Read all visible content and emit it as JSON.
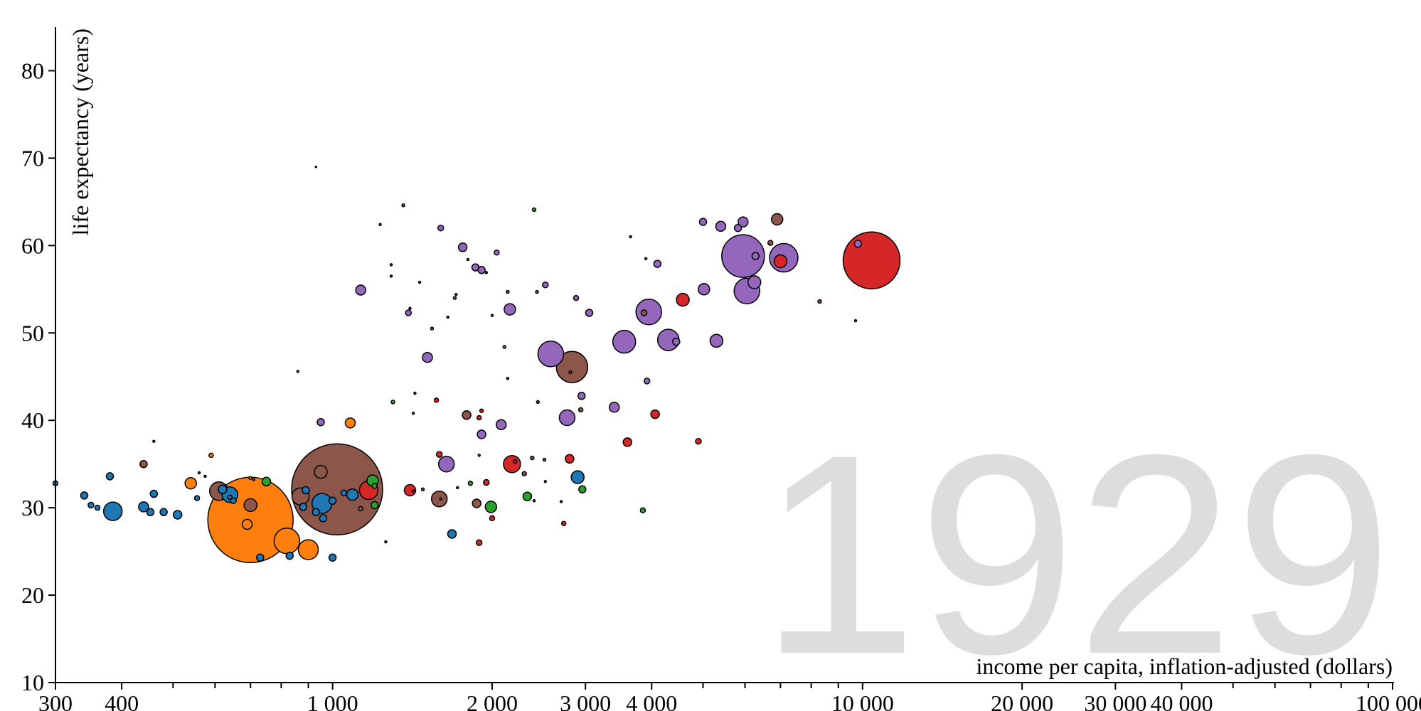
{
  "chart_data": {
    "type": "scatter",
    "year": "1929",
    "xlabel": "income per capita, inflation-adjusted (dollars)",
    "ylabel": "life expectancy (years)",
    "x_scale": "log",
    "xlim": [
      300,
      100000
    ],
    "ylim": [
      10,
      85
    ],
    "x_ticks": [
      300,
      400,
      1000,
      2000,
      3000,
      4000,
      10000,
      20000,
      30000,
      40000,
      100000
    ],
    "x_tick_labels": [
      "300",
      "400",
      "1 000",
      "2 000",
      "3 000",
      "4 000",
      "10 000",
      "20 000",
      "30 000",
      "40 000",
      "100 000"
    ],
    "x_minor_ticks": [
      500,
      600,
      700,
      800,
      900,
      5000,
      6000,
      7000,
      8000,
      9000,
      50000,
      60000,
      70000,
      80000,
      90000
    ],
    "y_ticks": [
      10,
      20,
      30,
      40,
      50,
      60,
      70,
      80
    ],
    "y_tick_labels": [
      "10",
      "20",
      "30",
      "40",
      "50",
      "60",
      "70",
      "80"
    ],
    "colors": {
      "blue": "#1f77b4",
      "orange": "#ff7f0e",
      "green": "#2ca02c",
      "red": "#d62728",
      "purple": "#9467bd",
      "brown": "#8c564b"
    },
    "points": [
      {
        "x": 1020,
        "y": 32.1,
        "r": 64,
        "c": "brown"
      },
      {
        "x": 700,
        "y": 28.6,
        "r": 60,
        "c": "orange"
      },
      {
        "x": 10400,
        "y": 58.3,
        "r": 40,
        "c": "red"
      },
      {
        "x": 5950,
        "y": 58.8,
        "r": 30,
        "c": "purple"
      },
      {
        "x": 2830,
        "y": 46.1,
        "r": 22,
        "c": "brown"
      },
      {
        "x": 2580,
        "y": 47.6,
        "r": 18,
        "c": "purple"
      },
      {
        "x": 7100,
        "y": 58.6,
        "r": 20,
        "c": "purple"
      },
      {
        "x": 6050,
        "y": 54.8,
        "r": 18,
        "c": "purple"
      },
      {
        "x": 3950,
        "y": 52.4,
        "r": 18,
        "c": "purple"
      },
      {
        "x": 3550,
        "y": 49.0,
        "r": 16,
        "c": "purple"
      },
      {
        "x": 4300,
        "y": 49.2,
        "r": 15,
        "c": "purple"
      },
      {
        "x": 820,
        "y": 26.2,
        "r": 18,
        "c": "orange"
      },
      {
        "x": 900,
        "y": 25.2,
        "r": 14,
        "c": "orange"
      },
      {
        "x": 955,
        "y": 30.5,
        "r": 14,
        "c": "blue"
      },
      {
        "x": 385,
        "y": 29.6,
        "r": 13,
        "c": "blue"
      },
      {
        "x": 1170,
        "y": 32.0,
        "r": 13,
        "c": "red"
      },
      {
        "x": 2180,
        "y": 35.0,
        "r": 12,
        "c": "red"
      },
      {
        "x": 610,
        "y": 31.9,
        "r": 13,
        "c": "brown"
      },
      {
        "x": 640,
        "y": 31.5,
        "r": 11,
        "c": "blue"
      },
      {
        "x": 870,
        "y": 31.3,
        "r": 12,
        "c": "brown"
      },
      {
        "x": 1640,
        "y": 35.0,
        "r": 11,
        "c": "purple"
      },
      {
        "x": 1590,
        "y": 31.0,
        "r": 11,
        "c": "brown"
      },
      {
        "x": 2770,
        "y": 40.3,
        "r": 11,
        "c": "purple"
      },
      {
        "x": 5300,
        "y": 49.1,
        "r": 9,
        "c": "purple"
      },
      {
        "x": 6250,
        "y": 55.8,
        "r": 9,
        "c": "purple"
      },
      {
        "x": 5020,
        "y": 55.0,
        "r": 8,
        "c": "purple"
      },
      {
        "x": 4580,
        "y": 53.8,
        "r": 9,
        "c": "red"
      },
      {
        "x": 7000,
        "y": 58.2,
        "r": 9,
        "c": "red"
      },
      {
        "x": 6900,
        "y": 63.0,
        "r": 8,
        "c": "brown"
      },
      {
        "x": 2900,
        "y": 33.5,
        "r": 9,
        "c": "blue"
      },
      {
        "x": 700,
        "y": 30.3,
        "r": 9,
        "c": "brown"
      },
      {
        "x": 950,
        "y": 34.1,
        "r": 9,
        "c": "brown"
      },
      {
        "x": 1190,
        "y": 33.1,
        "r": 8,
        "c": "green"
      },
      {
        "x": 1090,
        "y": 31.5,
        "r": 8,
        "c": "blue"
      },
      {
        "x": 1990,
        "y": 30.1,
        "r": 8,
        "c": "green"
      },
      {
        "x": 1400,
        "y": 32.0,
        "r": 8,
        "c": "red"
      },
      {
        "x": 2160,
        "y": 52.7,
        "r": 8,
        "c": "purple"
      },
      {
        "x": 1130,
        "y": 54.9,
        "r": 7,
        "c": "purple"
      },
      {
        "x": 3400,
        "y": 41.5,
        "r": 7,
        "c": "purple"
      },
      {
        "x": 2080,
        "y": 39.5,
        "r": 7,
        "c": "purple"
      },
      {
        "x": 1510,
        "y": 47.2,
        "r": 7,
        "c": "purple"
      },
      {
        "x": 2800,
        "y": 35.6,
        "r": 6,
        "c": "red"
      },
      {
        "x": 3600,
        "y": 37.5,
        "r": 6,
        "c": "red"
      },
      {
        "x": 4060,
        "y": 40.7,
        "r": 6,
        "c": "red"
      },
      {
        "x": 1080,
        "y": 39.7,
        "r": 7,
        "c": "orange"
      },
      {
        "x": 540,
        "y": 32.8,
        "r": 8,
        "c": "orange"
      },
      {
        "x": 690,
        "y": 28.1,
        "r": 7,
        "c": "orange"
      },
      {
        "x": 5950,
        "y": 62.7,
        "r": 7,
        "c": "purple"
      },
      {
        "x": 5400,
        "y": 62.2,
        "r": 7,
        "c": "purple"
      },
      {
        "x": 5000,
        "y": 62.7,
        "r": 5,
        "c": "purple"
      },
      {
        "x": 9800,
        "y": 60.2,
        "r": 5,
        "c": "purple"
      },
      {
        "x": 3920,
        "y": 44.5,
        "r": 4,
        "c": "purple"
      },
      {
        "x": 4100,
        "y": 57.9,
        "r": 5,
        "c": "purple"
      },
      {
        "x": 3050,
        "y": 52.3,
        "r": 5,
        "c": "purple"
      },
      {
        "x": 1860,
        "y": 57.5,
        "r": 5,
        "c": "purple"
      },
      {
        "x": 1910,
        "y": 57.2,
        "r": 5,
        "c": "purple"
      },
      {
        "x": 1760,
        "y": 59.8,
        "r": 6,
        "c": "purple"
      },
      {
        "x": 1600,
        "y": 62.0,
        "r": 4,
        "c": "purple"
      },
      {
        "x": 1390,
        "y": 52.3,
        "r": 4,
        "c": "purple"
      },
      {
        "x": 2040,
        "y": 59.2,
        "r": 3.5,
        "c": "purple"
      },
      {
        "x": 2520,
        "y": 55.5,
        "r": 4,
        "c": "purple"
      },
      {
        "x": 2880,
        "y": 54.0,
        "r": 3.5,
        "c": "purple"
      },
      {
        "x": 2950,
        "y": 42.8,
        "r": 5,
        "c": "purple"
      },
      {
        "x": 1910,
        "y": 38.4,
        "r": 6,
        "c": "purple"
      },
      {
        "x": 950,
        "y": 39.8,
        "r": 5,
        "c": "purple"
      },
      {
        "x": 4450,
        "y": 49.0,
        "r": 5,
        "c": "purple"
      },
      {
        "x": 5820,
        "y": 62.0,
        "r": 5,
        "c": "purple"
      },
      {
        "x": 6280,
        "y": 58.8,
        "r": 5,
        "c": "purple"
      },
      {
        "x": 2810,
        "y": 45.5,
        "r": 2,
        "c": "brown"
      },
      {
        "x": 1790,
        "y": 40.6,
        "r": 6,
        "c": "brown"
      },
      {
        "x": 1870,
        "y": 30.5,
        "r": 6,
        "c": "brown"
      },
      {
        "x": 440,
        "y": 35.0,
        "r": 5,
        "c": "brown"
      },
      {
        "x": 6700,
        "y": 60.3,
        "r": 3.5,
        "c": "brown"
      },
      {
        "x": 3870,
        "y": 52.3,
        "r": 4,
        "c": "brown"
      },
      {
        "x": 2940,
        "y": 41.2,
        "r": 3,
        "c": "brown"
      },
      {
        "x": 2380,
        "y": 35.7,
        "r": 2.5,
        "c": "brown"
      },
      {
        "x": 2300,
        "y": 33.9,
        "r": 3,
        "c": "brown"
      },
      {
        "x": 1130,
        "y": 29.9,
        "r": 3,
        "c": "brown"
      },
      {
        "x": 1590,
        "y": 36.1,
        "r": 4,
        "c": "red"
      },
      {
        "x": 1890,
        "y": 26.0,
        "r": 4,
        "c": "red"
      },
      {
        "x": 1950,
        "y": 32.9,
        "r": 4,
        "c": "red"
      },
      {
        "x": 2000,
        "y": 28.8,
        "r": 3.5,
        "c": "red"
      },
      {
        "x": 2730,
        "y": 28.2,
        "r": 3,
        "c": "red"
      },
      {
        "x": 4900,
        "y": 37.6,
        "r": 4,
        "c": "red"
      },
      {
        "x": 2210,
        "y": 35.3,
        "r": 2.5,
        "c": "red"
      },
      {
        "x": 1570,
        "y": 42.3,
        "r": 3,
        "c": "red"
      },
      {
        "x": 1890,
        "y": 40.3,
        "r": 3,
        "c": "red"
      },
      {
        "x": 1910,
        "y": 41.1,
        "r": 2.5,
        "c": "red"
      },
      {
        "x": 2330,
        "y": 31.3,
        "r": 6,
        "c": "green"
      },
      {
        "x": 2960,
        "y": 32.1,
        "r": 5,
        "c": "green"
      },
      {
        "x": 1820,
        "y": 32.8,
        "r": 3,
        "c": "green"
      },
      {
        "x": 1200,
        "y": 30.3,
        "r": 5,
        "c": "green"
      },
      {
        "x": 750,
        "y": 33.0,
        "r": 6,
        "c": "green"
      },
      {
        "x": 1200,
        "y": 32.5,
        "r": 3.5,
        "c": "green"
      },
      {
        "x": 3850,
        "y": 29.7,
        "r": 3.5,
        "c": "green"
      },
      {
        "x": 2400,
        "y": 64.1,
        "r": 2.5,
        "c": "green"
      },
      {
        "x": 1300,
        "y": 42.1,
        "r": 2.5,
        "c": "green"
      },
      {
        "x": 1680,
        "y": 27.0,
        "r": 6,
        "c": "blue"
      },
      {
        "x": 440,
        "y": 30.1,
        "r": 7,
        "c": "blue"
      },
      {
        "x": 453,
        "y": 29.5,
        "r": 5,
        "c": "blue"
      },
      {
        "x": 480,
        "y": 29.5,
        "r": 5,
        "c": "blue"
      },
      {
        "x": 510,
        "y": 29.2,
        "r": 6,
        "c": "blue"
      },
      {
        "x": 460,
        "y": 31.6,
        "r": 5,
        "c": "blue"
      },
      {
        "x": 380,
        "y": 33.6,
        "r": 5,
        "c": "blue"
      },
      {
        "x": 340,
        "y": 31.4,
        "r": 5,
        "c": "blue"
      },
      {
        "x": 350,
        "y": 30.3,
        "r": 4,
        "c": "blue"
      },
      {
        "x": 360,
        "y": 30.0,
        "r": 3.5,
        "c": "blue"
      },
      {
        "x": 300,
        "y": 32.8,
        "r": 3.5,
        "c": "blue"
      },
      {
        "x": 620,
        "y": 32.1,
        "r": 6,
        "c": "blue"
      },
      {
        "x": 730,
        "y": 24.3,
        "r": 5,
        "c": "blue"
      },
      {
        "x": 830,
        "y": 24.5,
        "r": 5,
        "c": "blue"
      },
      {
        "x": 1000,
        "y": 24.3,
        "r": 5,
        "c": "blue"
      },
      {
        "x": 890,
        "y": 32.0,
        "r": 5,
        "c": "blue"
      },
      {
        "x": 930,
        "y": 29.5,
        "r": 5,
        "c": "blue"
      },
      {
        "x": 960,
        "y": 28.8,
        "r": 5,
        "c": "blue"
      },
      {
        "x": 1000,
        "y": 30.8,
        "r": 5,
        "c": "blue"
      },
      {
        "x": 1050,
        "y": 31.7,
        "r": 4,
        "c": "blue"
      },
      {
        "x": 880,
        "y": 30.1,
        "r": 5,
        "c": "blue"
      },
      {
        "x": 555,
        "y": 31.1,
        "r": 3.5,
        "c": "blue"
      },
      {
        "x": 650,
        "y": 30.8,
        "r": 4,
        "c": "blue"
      },
      {
        "x": 640,
        "y": 31.2,
        "r": 3,
        "c": "blue"
      },
      {
        "x": 560,
        "y": 34.0,
        "r": 1.5,
        "c": "blue"
      },
      {
        "x": 590,
        "y": 36.0,
        "r": 3,
        "c": "orange"
      },
      {
        "x": 700,
        "y": 33.4,
        "r": 2,
        "c": "orange"
      },
      {
        "x": 460,
        "y": 37.6,
        "r": 1.5,
        "c": "brown"
      },
      {
        "x": 1260,
        "y": 26.1,
        "r": 1.5,
        "c": "brown"
      },
      {
        "x": 1480,
        "y": 32.1,
        "r": 2,
        "c": "brown"
      },
      {
        "x": 1420,
        "y": 31.9,
        "r": 1.5,
        "c": "brown"
      },
      {
        "x": 1360,
        "y": 64.6,
        "r": 2,
        "c": "brown"
      },
      {
        "x": 1230,
        "y": 62.4,
        "r": 1.5,
        "c": "brown"
      },
      {
        "x": 1290,
        "y": 57.8,
        "r": 1.5,
        "c": "brown"
      },
      {
        "x": 1540,
        "y": 50.5,
        "r": 2,
        "c": "brown"
      },
      {
        "x": 2110,
        "y": 48.4,
        "r": 2,
        "c": "brown"
      },
      {
        "x": 2140,
        "y": 44.8,
        "r": 1.5,
        "c": "brown"
      },
      {
        "x": 2440,
        "y": 42.1,
        "r": 2,
        "c": "brown"
      },
      {
        "x": 860,
        "y": 45.6,
        "r": 1.5,
        "c": "brown"
      },
      {
        "x": 3650,
        "y": 61.0,
        "r": 1.5,
        "c": "brown"
      },
      {
        "x": 3900,
        "y": 58.5,
        "r": 1.5,
        "c": "brown"
      },
      {
        "x": 8300,
        "y": 53.6,
        "r": 2.5,
        "c": "brown"
      },
      {
        "x": 9700,
        "y": 51.4,
        "r": 1.5,
        "c": "brown"
      },
      {
        "x": 1430,
        "y": 43.1,
        "r": 1.5,
        "c": "brown"
      },
      {
        "x": 1420,
        "y": 40.8,
        "r": 1.5,
        "c": "brown"
      },
      {
        "x": 1650,
        "y": 51.8,
        "r": 1.5,
        "c": "brown"
      },
      {
        "x": 1700,
        "y": 54.0,
        "r": 2,
        "c": "brown"
      },
      {
        "x": 1710,
        "y": 54.4,
        "r": 1.5,
        "c": "brown"
      },
      {
        "x": 2140,
        "y": 54.7,
        "r": 2,
        "c": "brown"
      },
      {
        "x": 2140,
        "y": 44.8,
        "r": 1.5,
        "c": "brown"
      },
      {
        "x": 1950,
        "y": 56.9,
        "r": 1.5,
        "c": "brown"
      },
      {
        "x": 2000,
        "y": 52.0,
        "r": 1.5,
        "c": "brown"
      },
      {
        "x": 2430,
        "y": 54.7,
        "r": 2,
        "c": "brown"
      },
      {
        "x": 1800,
        "y": 58.4,
        "r": 1.5,
        "c": "brown"
      },
      {
        "x": 1890,
        "y": 36.0,
        "r": 1.5,
        "c": "brown"
      },
      {
        "x": 2510,
        "y": 35.5,
        "r": 2,
        "c": "brown"
      },
      {
        "x": 2400,
        "y": 30.8,
        "r": 1.5,
        "c": "brown"
      },
      {
        "x": 1720,
        "y": 32.3,
        "r": 1.5,
        "c": "brown"
      },
      {
        "x": 1600,
        "y": 31.0,
        "r": 1.5,
        "c": "brown"
      },
      {
        "x": 1290,
        "y": 56.5,
        "r": 1.5,
        "c": "brown"
      },
      {
        "x": 1460,
        "y": 55.8,
        "r": 1.5,
        "c": "brown"
      },
      {
        "x": 1400,
        "y": 52.8,
        "r": 1.5,
        "c": "brown"
      },
      {
        "x": 2700,
        "y": 30.7,
        "r": 1.5,
        "c": "brown"
      },
      {
        "x": 2520,
        "y": 33.0,
        "r": 1.5,
        "c": "brown"
      },
      {
        "x": 930,
        "y": 69.0,
        "r": 1,
        "c": "brown"
      },
      {
        "x": 575,
        "y": 33.6,
        "r": 1.5,
        "c": "brown"
      },
      {
        "x": 710,
        "y": 33.2,
        "r": 1.5,
        "c": "brown"
      }
    ]
  }
}
